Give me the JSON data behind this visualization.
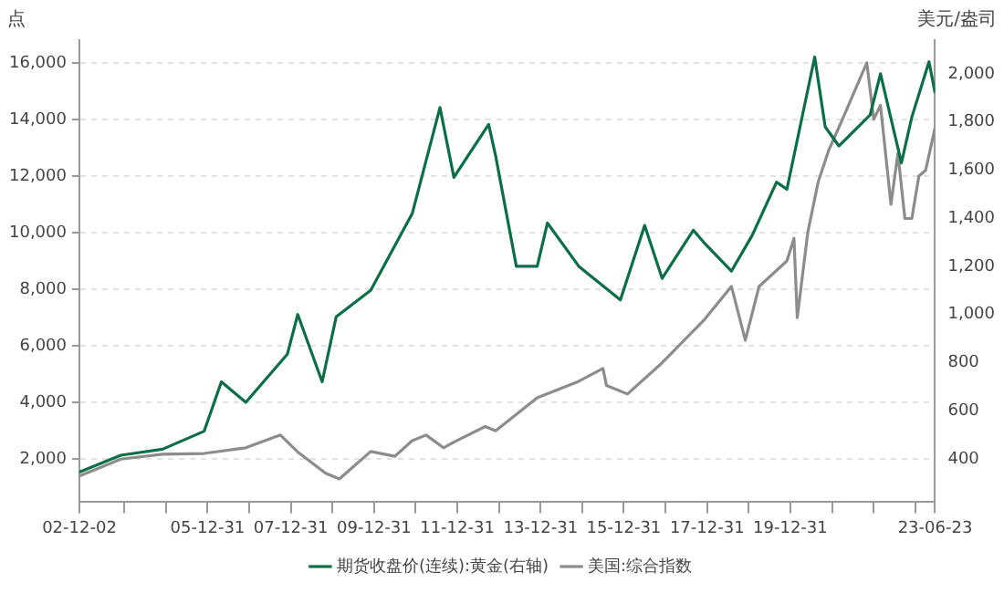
{
  "chart_data": {
    "type": "line",
    "ylabel": "点",
    "y2label": "美元/盎司",
    "xlim": [
      "2002-12-02",
      "2023-06-23"
    ],
    "xticks": [
      {
        "value": "2002-12-02",
        "label": "02-12-02"
      },
      {
        "value": "2003-12-31",
        "label": null
      },
      {
        "value": "2004-12-31",
        "label": null
      },
      {
        "value": "2005-12-31",
        "label": "05-12-31"
      },
      {
        "value": "2006-12-31",
        "label": null
      },
      {
        "value": "2007-12-31",
        "label": "07-12-31"
      },
      {
        "value": "2008-12-31",
        "label": null
      },
      {
        "value": "2009-12-31",
        "label": "09-12-31"
      },
      {
        "value": "2010-12-31",
        "label": null
      },
      {
        "value": "2011-12-31",
        "label": "11-12-31"
      },
      {
        "value": "2012-12-31",
        "label": null
      },
      {
        "value": "2013-12-31",
        "label": "13-12-31"
      },
      {
        "value": "2014-12-31",
        "label": null
      },
      {
        "value": "2015-12-31",
        "label": "15-12-31"
      },
      {
        "value": "2016-12-31",
        "label": null
      },
      {
        "value": "2017-12-31",
        "label": "17-12-31"
      },
      {
        "value": "2018-12-31",
        "label": null
      },
      {
        "value": "2019-12-31",
        "label": "19-12-31"
      },
      {
        "value": "2020-12-31",
        "label": null
      },
      {
        "value": "2021-12-31",
        "label": null
      },
      {
        "value": "2022-12-31",
        "label": null
      },
      {
        "value": "2023-06-23",
        "label": "23-06-23"
      }
    ],
    "ylim": [
      480,
      16800
    ],
    "yticks": [
      {
        "value": 2000,
        "label": "2,000"
      },
      {
        "value": 4000,
        "label": "4,000"
      },
      {
        "value": 6000,
        "label": "6,000"
      },
      {
        "value": 8000,
        "label": "8,000"
      },
      {
        "value": 10000,
        "label": "10,000"
      },
      {
        "value": 12000,
        "label": "12,000"
      },
      {
        "value": 14000,
        "label": "14,000"
      },
      {
        "value": 16000,
        "label": "16,000"
      }
    ],
    "y2lim": [
      220,
      2140
    ],
    "y2ticks": [
      400,
      600,
      800,
      {
        "value": 1000,
        "label": "1,000"
      },
      {
        "value": 1200,
        "label": "1,200"
      },
      {
        "value": 1400,
        "label": "1,400"
      },
      {
        "value": 1600,
        "label": "1,600"
      },
      {
        "value": 1800,
        "label": "1,800"
      },
      {
        "value": 2000,
        "label": "2,000"
      }
    ],
    "grid": "y",
    "legend": "bottom",
    "marker": "none",
    "line_style": "solid",
    "series": [
      {
        "name": "期货收盘价(连续):黄金(右轴)",
        "color": "#0b6e47",
        "axis": "y2",
        "x": [
          "2002-12-02",
          "2003-12",
          "2004-12",
          "2005-12",
          "2006-05",
          "2006-12",
          "2007-12",
          "2008-03",
          "2008-10",
          "2009-02",
          "2009-12",
          "2010-12",
          "2011-08",
          "2011-12",
          "2012-10",
          "2012-12",
          "2013-06",
          "2013-12",
          "2014-03",
          "2014-12",
          "2015-12",
          "2016-07",
          "2016-12",
          "2017-09",
          "2017-12",
          "2018-08",
          "2019-02",
          "2019-09",
          "2019-12",
          "2020-08",
          "2020-11",
          "2021-03",
          "2021-12",
          "2022-03",
          "2022-09",
          "2022-12",
          "2023-05",
          "2023-06-23"
        ],
        "values": [
          345,
          415,
          440,
          515,
          720,
          635,
          835,
          1000,
          720,
          990,
          1100,
          1420,
          1860,
          1570,
          1790,
          1660,
          1200,
          1200,
          1380,
          1200,
          1060,
          1370,
          1150,
          1350,
          1300,
          1180,
          1330,
          1550,
          1520,
          2070,
          1780,
          1700,
          1830,
          2000,
          1630,
          1820,
          2050,
          1920
        ]
      },
      {
        "name": "美国:综合指数",
        "color": "#8c8c8c",
        "x": [
          "2002-12-02",
          "2003-12",
          "2004-12",
          "2005-12",
          "2006-12",
          "2007-10",
          "2008-03",
          "2008-11",
          "2009-03",
          "2009-12",
          "2010-07",
          "2010-12",
          "2011-04",
          "2011-09",
          "2011-12",
          "2012-09",
          "2012-12",
          "2013-12",
          "2014-12",
          "2015-07",
          "2015-08",
          "2016-02",
          "2016-12",
          "2017-12",
          "2018-08",
          "2018-12",
          "2019-04",
          "2019-12",
          "2020-02",
          "2020-03",
          "2020-06",
          "2020-09",
          "2020-12",
          "2021-04",
          "2021-11",
          "2022-01",
          "2022-03",
          "2022-06",
          "2022-08",
          "2022-10",
          "2022-12",
          "2023-02",
          "2023-04",
          "2023-06-23"
        ],
        "values": [
          1400,
          2000,
          2170,
          2200,
          2400,
          2850,
          2250,
          1500,
          1300,
          2270,
          2100,
          2650,
          2850,
          2400,
          2600,
          3150,
          3000,
          4170,
          4750,
          5200,
          4600,
          4300,
          5400,
          6900,
          8100,
          6200,
          8100,
          9000,
          9800,
          7000,
          10000,
          11800,
          12900,
          14000,
          16000,
          14000,
          14500,
          11000,
          12800,
          10500,
          10500,
          12000,
          12200,
          13700
        ]
      }
    ]
  }
}
